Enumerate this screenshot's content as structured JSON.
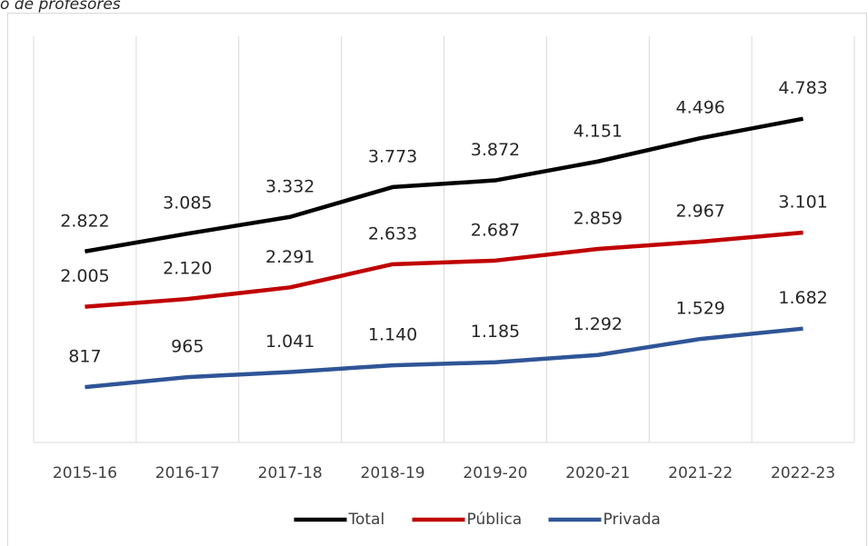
{
  "chart_data": {
    "type": "line",
    "title": "o de profesores",
    "categories": [
      "2015-16",
      "2016-17",
      "2017-18",
      "2018-19",
      "2019-20",
      "2020-21",
      "2021-22",
      "2022-23"
    ],
    "series": [
      {
        "name": "Total",
        "color": "#000000",
        "values": [
          2822,
          3085,
          3332,
          3773,
          3872,
          4151,
          4496,
          4783
        ],
        "value_labels": [
          "2.822",
          "3.085",
          "3.332",
          "3.773",
          "3.872",
          "4.151",
          "4.496",
          "4.783"
        ]
      },
      {
        "name": "Pública",
        "color": "#c00000",
        "values": [
          2005,
          2120,
          2291,
          2633,
          2687,
          2859,
          2967,
          3101
        ],
        "value_labels": [
          "2.005",
          "2.120",
          "2.291",
          "2.633",
          "2.687",
          "2.859",
          "2.967",
          "3.101"
        ]
      },
      {
        "name": "Privada",
        "color": "#2f5597",
        "values": [
          817,
          965,
          1041,
          1140,
          1185,
          1292,
          1529,
          1682
        ],
        "value_labels": [
          "817",
          "965",
          "1.041",
          "1.140",
          "1.185",
          "1.292",
          "1.529",
          "1.682"
        ]
      }
    ],
    "ylim": [
      0,
      6000
    ],
    "grid": true,
    "legend": "bottom"
  }
}
